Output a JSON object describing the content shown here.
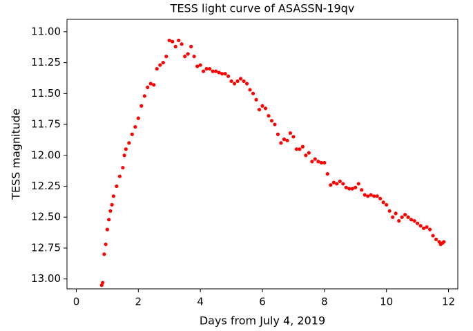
{
  "chart_data": {
    "type": "scatter",
    "title": "TESS light curve of ASASSN-19qv",
    "xlabel": "Days from July 4, 2019",
    "ylabel": "TESS magnitude",
    "xlim": [
      -0.3,
      12.3
    ],
    "ylim": [
      10.9,
      13.08
    ],
    "invert_y": true,
    "xticks": [
      0,
      2,
      4,
      6,
      8,
      10,
      12
    ],
    "yticks": [
      {
        "value": 11,
        "label": "11.00"
      },
      {
        "value": 11.25,
        "label": "11.25"
      },
      {
        "value": 11.5,
        "label": "11.50"
      },
      {
        "value": 11.75,
        "label": "11.75"
      },
      {
        "value": 12,
        "label": "12.00"
      },
      {
        "value": 12.25,
        "label": "12.25"
      },
      {
        "value": 12.5,
        "label": "12.50"
      },
      {
        "value": 12.75,
        "label": "12.75"
      },
      {
        "value": 13,
        "label": "13.00"
      }
    ],
    "grid": false,
    "series": [
      {
        "color": "#ff0000",
        "x": [
          0.82,
          0.85,
          0.9,
          0.95,
          1.0,
          1.05,
          1.1,
          1.15,
          1.2,
          1.3,
          1.4,
          1.5,
          1.55,
          1.6,
          1.7,
          1.8,
          1.9,
          2.0,
          2.1,
          2.2,
          2.3,
          2.4,
          2.5,
          2.6,
          2.7,
          2.8,
          2.9,
          3.0,
          3.1,
          3.2,
          3.3,
          3.4,
          3.5,
          3.6,
          3.7,
          3.8,
          3.9,
          4.0,
          4.1,
          4.2,
          4.3,
          4.4,
          4.5,
          4.6,
          4.7,
          4.8,
          4.9,
          5.0,
          5.1,
          5.2,
          5.3,
          5.4,
          5.5,
          5.6,
          5.7,
          5.8,
          5.9,
          6.0,
          6.1,
          6.2,
          6.3,
          6.4,
          6.5,
          6.6,
          6.7,
          6.8,
          6.9,
          7.0,
          7.1,
          7.2,
          7.3,
          7.4,
          7.5,
          7.6,
          7.7,
          7.8,
          7.9,
          8.0,
          8.1,
          8.2,
          8.3,
          8.4,
          8.5,
          8.6,
          8.7,
          8.8,
          8.9,
          9.0,
          9.1,
          9.2,
          9.3,
          9.4,
          9.5,
          9.6,
          9.7,
          9.8,
          9.9,
          10.0,
          10.1,
          10.2,
          10.3,
          10.4,
          10.5,
          10.6,
          10.7,
          10.8,
          10.9,
          11.0,
          11.1,
          11.2,
          11.3,
          11.4,
          11.5,
          11.6,
          11.7,
          11.75,
          11.8,
          11.85
        ],
        "values": [
          13.05,
          13.03,
          12.8,
          12.72,
          12.6,
          12.52,
          12.45,
          12.4,
          12.33,
          12.25,
          12.17,
          12.1,
          12.0,
          11.95,
          11.9,
          11.83,
          11.77,
          11.7,
          11.6,
          11.52,
          11.45,
          11.42,
          11.43,
          11.3,
          11.27,
          11.25,
          11.2,
          11.07,
          11.08,
          11.12,
          11.07,
          11.1,
          11.2,
          11.18,
          11.12,
          11.2,
          11.28,
          11.27,
          11.32,
          11.3,
          11.3,
          11.32,
          11.32,
          11.33,
          11.34,
          11.34,
          11.36,
          11.4,
          11.42,
          11.4,
          11.38,
          11.4,
          11.42,
          11.47,
          11.5,
          11.55,
          11.63,
          11.6,
          11.62,
          11.68,
          11.72,
          11.75,
          11.83,
          11.9,
          11.87,
          11.88,
          11.82,
          11.85,
          11.95,
          11.95,
          11.93,
          12.0,
          11.98,
          12.05,
          12.03,
          12.05,
          12.06,
          12.06,
          12.15,
          12.24,
          12.22,
          12.23,
          12.21,
          12.23,
          12.26,
          12.27,
          12.27,
          12.26,
          12.23,
          12.28,
          12.32,
          12.33,
          12.32,
          12.33,
          12.33,
          12.35,
          12.38,
          12.4,
          12.45,
          12.5,
          12.47,
          12.53,
          12.5,
          12.48,
          12.5,
          12.52,
          12.53,
          12.55,
          12.57,
          12.59,
          12.58,
          12.6,
          12.65,
          12.68,
          12.7,
          12.72,
          12.71,
          12.7
        ]
      }
    ]
  }
}
